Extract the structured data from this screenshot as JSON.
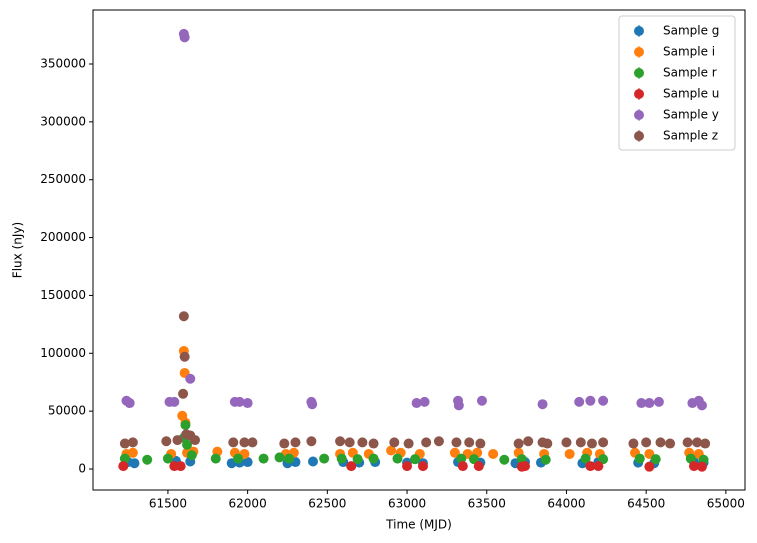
{
  "chart_data": {
    "type": "scatter",
    "xlabel": "Time (MJD)",
    "ylabel": "Flux (nJy)",
    "xlim": [
      61030,
      65120
    ],
    "ylim": [
      -18150,
      396660
    ],
    "xticks": [
      61500,
      62000,
      62500,
      63000,
      63500,
      64000,
      64500,
      65000
    ],
    "yticks": [
      0,
      50000,
      100000,
      150000,
      200000,
      250000,
      300000,
      350000
    ],
    "legend": "upper right",
    "series": [
      {
        "name": "Sample g",
        "color": "#1f77b4",
        "x": [
          61250,
          61290,
          61550,
          61640,
          61900,
          61950,
          62000,
          62250,
          62300,
          62410,
          62600,
          62700,
          62800,
          63000,
          63100,
          63320,
          63460,
          63680,
          63740,
          63840,
          64100,
          64200,
          64450,
          64550,
          64800,
          64860
        ],
        "values": [
          6000,
          5000,
          7000,
          6500,
          5000,
          5500,
          6000,
          5000,
          6000,
          6500,
          6000,
          5500,
          6000,
          5500,
          5000,
          6000,
          5500,
          5000,
          6000,
          5500,
          5000,
          6000,
          5500,
          5000,
          6000,
          5500
        ]
      },
      {
        "name": "Sample i",
        "color": "#ff7f0e",
        "x": [
          61240,
          61280,
          61520,
          61590,
          61600,
          61605,
          61610,
          61620,
          61660,
          61810,
          61920,
          61980,
          62240,
          62290,
          62580,
          62660,
          62760,
          62900,
          62960,
          63080,
          63300,
          63380,
          63440,
          63540,
          63700,
          63860,
          64020,
          64130,
          64210,
          64430,
          64520,
          64770,
          64830
        ],
        "values": [
          13000,
          14000,
          13000,
          46000,
          102000,
          83000,
          40000,
          14000,
          15000,
          15000,
          14000,
          13000,
          13000,
          14000,
          13000,
          14000,
          13000,
          16000,
          14000,
          13000,
          14000,
          13000,
          14000,
          13000,
          14000,
          13000,
          13000,
          14000,
          13000,
          14000,
          13000,
          14000,
          13000
        ]
      },
      {
        "name": "Sample r",
        "color": "#2ca02c",
        "x": [
          61230,
          61370,
          61500,
          61600,
          61610,
          61620,
          61650,
          61800,
          61940,
          62100,
          62200,
          62260,
          62480,
          62590,
          62690,
          62790,
          62940,
          63050,
          63340,
          63420,
          63610,
          63720,
          63870,
          64120,
          64230,
          64460,
          64560,
          64780,
          64860
        ],
        "values": [
          9000,
          8000,
          9000,
          27000,
          38000,
          21000,
          12000,
          9000,
          9000,
          9000,
          10000,
          9000,
          9000,
          9000,
          8500,
          9000,
          9000,
          8500,
          9000,
          8500,
          8000,
          8500,
          8000,
          9000,
          8500,
          9000,
          8500,
          9000,
          8000
        ]
      },
      {
        "name": "Sample u",
        "color": "#d62728",
        "x": [
          61220,
          61540,
          61580,
          62650,
          63000,
          63100,
          63350,
          63450,
          63720,
          63740,
          64150,
          64200,
          64520,
          64800,
          64850
        ],
        "values": [
          2500,
          2500,
          2500,
          2500,
          2500,
          2500,
          2500,
          2500,
          2000,
          2500,
          2500,
          2500,
          2000,
          2500,
          2000
        ]
      },
      {
        "name": "Sample y",
        "color": "#9467bd",
        "x": [
          61240,
          61260,
          61510,
          61540,
          61600,
          61605,
          61640,
          61920,
          61950,
          62000,
          62400,
          62405,
          63060,
          63110,
          63320,
          63325,
          63470,
          63850,
          64080,
          64150,
          64230,
          64470,
          64520,
          64580,
          64790,
          64830,
          64850
        ],
        "values": [
          59000,
          57000,
          58000,
          58000,
          376000,
          373000,
          78000,
          58000,
          58000,
          57000,
          58000,
          56000,
          57000,
          58000,
          59000,
          55000,
          59000,
          56000,
          58000,
          59000,
          59000,
          57000,
          57000,
          58000,
          57000,
          59000,
          55000
        ]
      },
      {
        "name": "Sample z",
        "color": "#8c564b",
        "x": [
          61230,
          61280,
          61490,
          61560,
          61595,
          61600,
          61605,
          61615,
          61640,
          61670,
          61910,
          61980,
          62030,
          62230,
          62300,
          62400,
          62580,
          62640,
          62720,
          62790,
          62920,
          63010,
          63120,
          63200,
          63310,
          63390,
          63460,
          63700,
          63760,
          63850,
          63880,
          64000,
          64090,
          64160,
          64230,
          64420,
          64500,
          64590,
          64650,
          64760,
          64820,
          64870
        ],
        "values": [
          22000,
          23000,
          24000,
          25000,
          65000,
          132000,
          97000,
          30000,
          29000,
          25000,
          23000,
          23000,
          23000,
          22000,
          23000,
          24000,
          24000,
          23000,
          23000,
          22000,
          23000,
          22000,
          23000,
          24000,
          23000,
          23000,
          22000,
          22000,
          24000,
          23000,
          22000,
          23000,
          23000,
          22000,
          23000,
          22000,
          23000,
          23000,
          22000,
          23000,
          23000,
          22000
        ]
      }
    ]
  }
}
